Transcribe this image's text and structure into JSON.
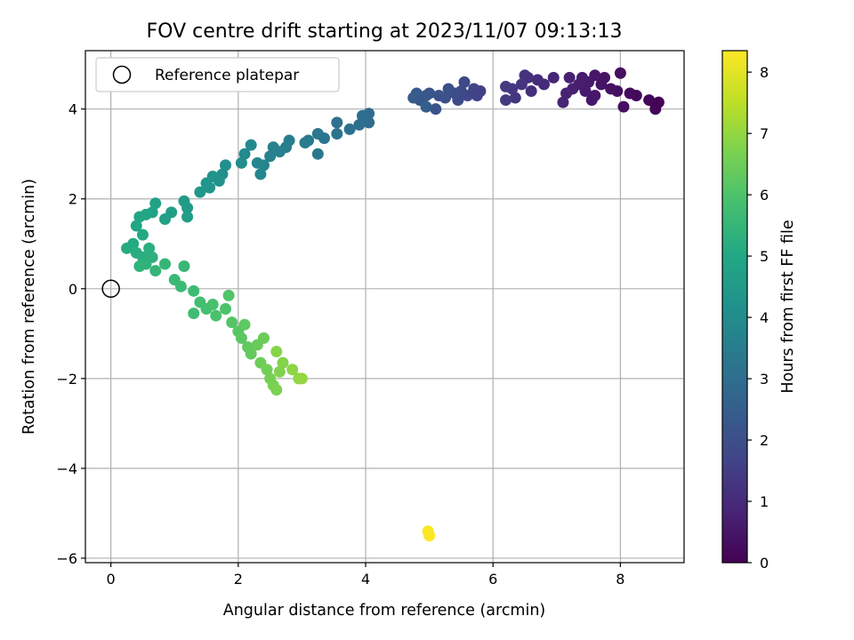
{
  "chart_data": {
    "type": "scatter",
    "title": "FOV centre drift starting at 2023/11/07 09:13:13",
    "xlabel": "Angular distance from reference (arcmin)",
    "ylabel": "Rotation from reference (arcmin)",
    "xlim": [
      -0.4,
      9.0
    ],
    "ylim": [
      -6.1,
      5.3
    ],
    "xticks": [
      0,
      2,
      4,
      6,
      8
    ],
    "yticks": [
      -6,
      -4,
      -2,
      0,
      2,
      4
    ],
    "grid": true,
    "legend": {
      "position": "top-left",
      "entries": [
        {
          "label": "Reference platepar",
          "marker": "open-circle"
        }
      ]
    },
    "reference_point": {
      "x": 0,
      "y": 0
    },
    "colorbar": {
      "label": "Hours from first FF file",
      "range": [
        0,
        8.35
      ],
      "ticks": [
        0,
        1,
        2,
        3,
        4,
        5,
        6,
        7,
        8
      ],
      "colormap": "viridis"
    },
    "points": [
      {
        "x": 8.55,
        "y": 4.1,
        "t": 0.05
      },
      {
        "x": 8.6,
        "y": 4.15,
        "t": 0.08
      },
      {
        "x": 8.55,
        "y": 4.0,
        "t": 0.1
      },
      {
        "x": 8.45,
        "y": 4.2,
        "t": 0.15
      },
      {
        "x": 8.25,
        "y": 4.3,
        "t": 0.2
      },
      {
        "x": 8.15,
        "y": 4.35,
        "t": 0.25
      },
      {
        "x": 8.0,
        "y": 4.8,
        "t": 0.3
      },
      {
        "x": 8.05,
        "y": 4.05,
        "t": 0.33
      },
      {
        "x": 7.95,
        "y": 4.4,
        "t": 0.36
      },
      {
        "x": 7.85,
        "y": 4.45,
        "t": 0.4
      },
      {
        "x": 7.75,
        "y": 4.7,
        "t": 0.43
      },
      {
        "x": 7.7,
        "y": 4.55,
        "t": 0.46
      },
      {
        "x": 7.6,
        "y": 4.75,
        "t": 0.5
      },
      {
        "x": 7.6,
        "y": 4.3,
        "t": 0.53
      },
      {
        "x": 7.55,
        "y": 4.2,
        "t": 0.56
      },
      {
        "x": 7.5,
        "y": 4.6,
        "t": 0.6
      },
      {
        "x": 7.45,
        "y": 4.4,
        "t": 0.63
      },
      {
        "x": 7.4,
        "y": 4.7,
        "t": 0.66
      },
      {
        "x": 7.35,
        "y": 4.55,
        "t": 0.7
      },
      {
        "x": 7.25,
        "y": 4.45,
        "t": 0.73
      },
      {
        "x": 7.2,
        "y": 4.7,
        "t": 0.76
      },
      {
        "x": 7.15,
        "y": 4.35,
        "t": 0.8
      },
      {
        "x": 7.1,
        "y": 4.15,
        "t": 0.83
      },
      {
        "x": 6.95,
        "y": 4.7,
        "t": 0.9
      },
      {
        "x": 6.8,
        "y": 4.55,
        "t": 1.0
      },
      {
        "x": 6.7,
        "y": 4.65,
        "t": 1.05
      },
      {
        "x": 6.6,
        "y": 4.4,
        "t": 1.1
      },
      {
        "x": 6.55,
        "y": 4.7,
        "t": 1.15
      },
      {
        "x": 6.5,
        "y": 4.75,
        "t": 1.2
      },
      {
        "x": 6.45,
        "y": 4.55,
        "t": 1.25
      },
      {
        "x": 6.35,
        "y": 4.25,
        "t": 1.3
      },
      {
        "x": 6.3,
        "y": 4.45,
        "t": 1.35
      },
      {
        "x": 6.2,
        "y": 4.5,
        "t": 1.4
      },
      {
        "x": 6.2,
        "y": 4.2,
        "t": 1.45
      },
      {
        "x": 5.8,
        "y": 4.4,
        "t": 1.6
      },
      {
        "x": 5.75,
        "y": 4.3,
        "t": 1.65
      },
      {
        "x": 5.7,
        "y": 4.45,
        "t": 1.7
      },
      {
        "x": 5.6,
        "y": 4.3,
        "t": 1.75
      },
      {
        "x": 5.55,
        "y": 4.6,
        "t": 1.8
      },
      {
        "x": 5.5,
        "y": 4.4,
        "t": 1.85
      },
      {
        "x": 5.45,
        "y": 4.2,
        "t": 1.9
      },
      {
        "x": 5.4,
        "y": 4.35,
        "t": 1.95
      },
      {
        "x": 5.3,
        "y": 4.45,
        "t": 2.0
      },
      {
        "x": 5.25,
        "y": 4.25,
        "t": 2.05
      },
      {
        "x": 5.15,
        "y": 4.3,
        "t": 2.1
      },
      {
        "x": 5.1,
        "y": 4.0,
        "t": 2.15
      },
      {
        "x": 5.0,
        "y": 4.35,
        "t": 2.2
      },
      {
        "x": 4.95,
        "y": 4.3,
        "t": 2.25
      },
      {
        "x": 4.85,
        "y": 4.2,
        "t": 2.3
      },
      {
        "x": 4.8,
        "y": 4.35,
        "t": 2.35
      },
      {
        "x": 4.75,
        "y": 4.25,
        "t": 2.4
      },
      {
        "x": 4.95,
        "y": 4.05,
        "t": 2.45
      },
      {
        "x": 4.05,
        "y": 3.9,
        "t": 2.9
      },
      {
        "x": 4.05,
        "y": 3.7,
        "t": 2.95
      },
      {
        "x": 3.95,
        "y": 3.85,
        "t": 3.0
      },
      {
        "x": 3.9,
        "y": 3.65,
        "t": 3.05
      },
      {
        "x": 3.75,
        "y": 3.55,
        "t": 3.1
      },
      {
        "x": 3.55,
        "y": 3.7,
        "t": 3.15
      },
      {
        "x": 3.55,
        "y": 3.45,
        "t": 3.2
      },
      {
        "x": 3.35,
        "y": 3.35,
        "t": 3.25
      },
      {
        "x": 3.25,
        "y": 3.45,
        "t": 3.3
      },
      {
        "x": 3.25,
        "y": 3.0,
        "t": 3.35
      },
      {
        "x": 3.1,
        "y": 3.3,
        "t": 3.4
      },
      {
        "x": 3.05,
        "y": 3.25,
        "t": 3.45
      },
      {
        "x": 2.8,
        "y": 3.3,
        "t": 3.5
      },
      {
        "x": 2.75,
        "y": 3.15,
        "t": 3.55
      },
      {
        "x": 2.65,
        "y": 3.05,
        "t": 3.6
      },
      {
        "x": 2.55,
        "y": 3.15,
        "t": 3.65
      },
      {
        "x": 2.5,
        "y": 2.95,
        "t": 3.7
      },
      {
        "x": 2.4,
        "y": 2.75,
        "t": 3.75
      },
      {
        "x": 2.35,
        "y": 2.55,
        "t": 3.8
      },
      {
        "x": 2.3,
        "y": 2.8,
        "t": 3.85
      },
      {
        "x": 2.2,
        "y": 3.2,
        "t": 3.9
      },
      {
        "x": 2.1,
        "y": 3.0,
        "t": 3.95
      },
      {
        "x": 2.05,
        "y": 2.8,
        "t": 4.0
      },
      {
        "x": 1.8,
        "y": 2.75,
        "t": 4.1
      },
      {
        "x": 1.75,
        "y": 2.55,
        "t": 4.15
      },
      {
        "x": 1.7,
        "y": 2.4,
        "t": 4.2
      },
      {
        "x": 1.6,
        "y": 2.5,
        "t": 4.25
      },
      {
        "x": 1.55,
        "y": 2.25,
        "t": 4.3
      },
      {
        "x": 1.5,
        "y": 2.35,
        "t": 4.35
      },
      {
        "x": 1.4,
        "y": 2.15,
        "t": 4.4
      },
      {
        "x": 1.15,
        "y": 1.95,
        "t": 4.5
      },
      {
        "x": 1.2,
        "y": 1.8,
        "t": 4.55
      },
      {
        "x": 1.2,
        "y": 1.6,
        "t": 4.6
      },
      {
        "x": 0.95,
        "y": 1.7,
        "t": 4.65
      },
      {
        "x": 0.85,
        "y": 1.55,
        "t": 4.7
      },
      {
        "x": 0.7,
        "y": 1.9,
        "t": 4.75
      },
      {
        "x": 0.65,
        "y": 1.7,
        "t": 4.8
      },
      {
        "x": 0.55,
        "y": 1.65,
        "t": 4.85
      },
      {
        "x": 0.45,
        "y": 1.6,
        "t": 4.9
      },
      {
        "x": 0.4,
        "y": 1.4,
        "t": 4.95
      },
      {
        "x": 0.5,
        "y": 1.2,
        "t": 5.0
      },
      {
        "x": 0.35,
        "y": 1.0,
        "t": 5.05
      },
      {
        "x": 0.25,
        "y": 0.9,
        "t": 5.1
      },
      {
        "x": 0.4,
        "y": 0.8,
        "t": 5.15
      },
      {
        "x": 0.5,
        "y": 0.7,
        "t": 5.2
      },
      {
        "x": 0.6,
        "y": 0.9,
        "t": 5.25
      },
      {
        "x": 0.65,
        "y": 0.7,
        "t": 5.3
      },
      {
        "x": 0.55,
        "y": 0.55,
        "t": 5.35
      },
      {
        "x": 0.45,
        "y": 0.5,
        "t": 5.4
      },
      {
        "x": 0.7,
        "y": 0.4,
        "t": 5.45
      },
      {
        "x": 0.85,
        "y": 0.55,
        "t": 5.5
      },
      {
        "x": 1.15,
        "y": 0.5,
        "t": 5.55
      },
      {
        "x": 1.0,
        "y": 0.2,
        "t": 5.6
      },
      {
        "x": 1.1,
        "y": 0.05,
        "t": 5.65
      },
      {
        "x": 1.3,
        "y": -0.05,
        "t": 5.7
      },
      {
        "x": 1.3,
        "y": -0.55,
        "t": 5.75
      },
      {
        "x": 1.4,
        "y": -0.3,
        "t": 5.8
      },
      {
        "x": 1.5,
        "y": -0.45,
        "t": 5.85
      },
      {
        "x": 1.6,
        "y": -0.35,
        "t": 5.9
      },
      {
        "x": 1.65,
        "y": -0.6,
        "t": 5.95
      },
      {
        "x": 1.8,
        "y": -0.45,
        "t": 6.0
      },
      {
        "x": 1.85,
        "y": -0.15,
        "t": 6.05
      },
      {
        "x": 1.9,
        "y": -0.75,
        "t": 6.1
      },
      {
        "x": 2.0,
        "y": -0.95,
        "t": 6.15
      },
      {
        "x": 2.05,
        "y": -1.1,
        "t": 6.2
      },
      {
        "x": 2.1,
        "y": -0.8,
        "t": 6.25
      },
      {
        "x": 2.15,
        "y": -1.3,
        "t": 6.3
      },
      {
        "x": 2.2,
        "y": -1.45,
        "t": 6.35
      },
      {
        "x": 2.3,
        "y": -1.25,
        "t": 6.4
      },
      {
        "x": 2.4,
        "y": -1.1,
        "t": 6.45
      },
      {
        "x": 2.35,
        "y": -1.65,
        "t": 6.5
      },
      {
        "x": 2.45,
        "y": -1.8,
        "t": 6.55
      },
      {
        "x": 2.5,
        "y": -2.0,
        "t": 6.6
      },
      {
        "x": 2.55,
        "y": -2.15,
        "t": 6.65
      },
      {
        "x": 2.6,
        "y": -2.25,
        "t": 6.7
      },
      {
        "x": 2.65,
        "y": -1.85,
        "t": 6.75
      },
      {
        "x": 2.7,
        "y": -1.65,
        "t": 6.8
      },
      {
        "x": 2.6,
        "y": -1.4,
        "t": 6.85
      },
      {
        "x": 2.85,
        "y": -1.8,
        "t": 6.9
      },
      {
        "x": 2.95,
        "y": -2.0,
        "t": 6.95
      },
      {
        "x": 3.0,
        "y": -2.0,
        "t": 7.0
      },
      {
        "x": 4.98,
        "y": -5.4,
        "t": 8.3
      },
      {
        "x": 5.0,
        "y": -5.5,
        "t": 8.35
      }
    ]
  }
}
